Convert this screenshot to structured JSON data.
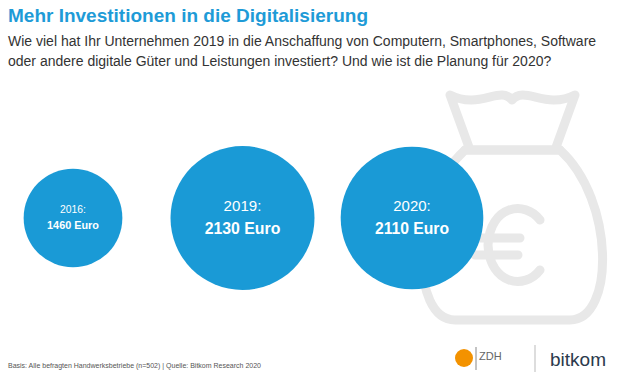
{
  "chart_data": {
    "type": "bubble",
    "title": "Mehr Investitionen in die Digitalisierung",
    "subtitle": "Wie viel hat Ihr Unternehmen 2019 in die Anschaffung von Computern, Smartphones, Software oder andere digitale Güter und Leistungen investiert? Und wie ist die Planung für 2020?",
    "categories": [
      "2016:",
      "2019:",
      "2020:"
    ],
    "values": [
      1460,
      2130,
      2110
    ],
    "value_labels": [
      "1460 Euro",
      "2130 Euro",
      "2110 Euro"
    ],
    "data_labels": true,
    "color": "#1a9ad6",
    "footnote": "Basis: Alle befragten Handwerksbetriebe (n=502) | Quelle: Bitkom Research 2020",
    "logos": [
      "ZDH",
      "bitkom"
    ]
  }
}
